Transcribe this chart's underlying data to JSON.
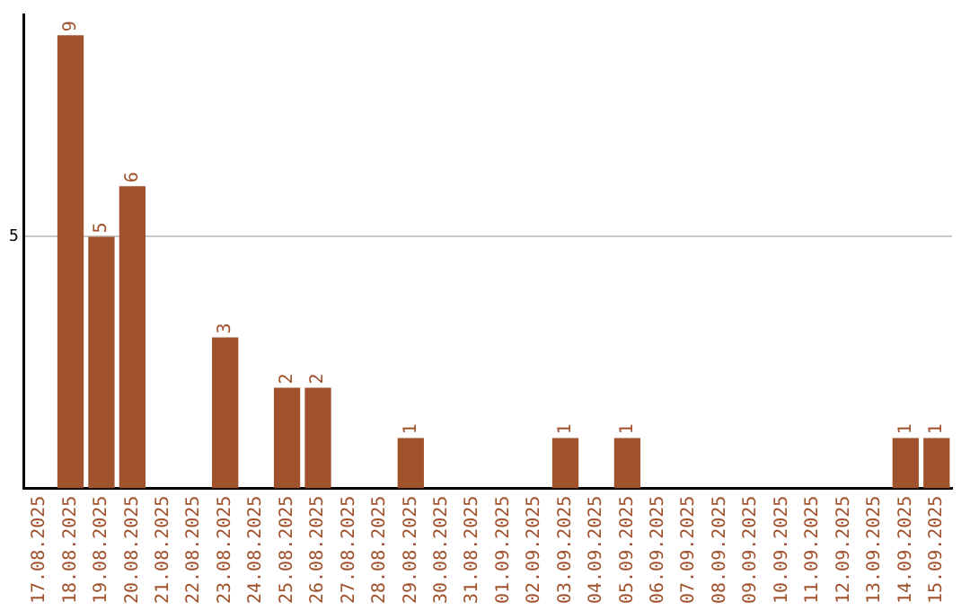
{
  "chart_data": {
    "type": "bar",
    "categories": [
      "17.08.2025",
      "18.08.2025",
      "19.08.2025",
      "20.08.2025",
      "21.08.2025",
      "22.08.2025",
      "23.08.2025",
      "24.08.2025",
      "25.08.2025",
      "26.08.2025",
      "27.08.2025",
      "28.08.2025",
      "29.08.2025",
      "30.08.2025",
      "31.08.2025",
      "01.09.2025",
      "02.09.2025",
      "03.09.2025",
      "04.09.2025",
      "05.09.2025",
      "06.09.2025",
      "07.09.2025",
      "08.09.2025",
      "09.09.2025",
      "10.09.2025",
      "11.09.2025",
      "12.09.2025",
      "13.09.2025",
      "14.09.2025",
      "15.09.2025"
    ],
    "values": [
      null,
      9,
      5,
      6,
      null,
      null,
      3,
      null,
      2,
      2,
      null,
      null,
      1,
      null,
      null,
      null,
      null,
      1,
      null,
      1,
      null,
      null,
      null,
      null,
      null,
      null,
      null,
      null,
      1,
      1
    ],
    "color": "#a0522d",
    "ylim": [
      0,
      9.4
    ],
    "yticks": [
      5
    ],
    "grid": "y",
    "data_labels": true,
    "legend": false
  }
}
